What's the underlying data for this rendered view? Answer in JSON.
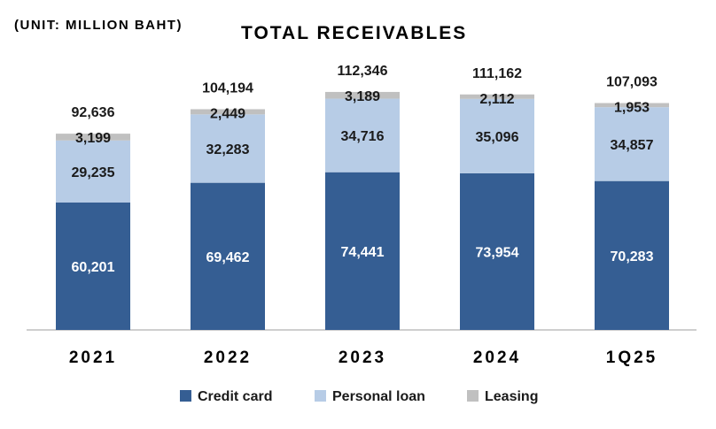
{
  "chart_data": {
    "type": "bar",
    "stacked": true,
    "title": "TOTAL RECEIVABLES",
    "subtitle": "(UNIT: MILLION BAHT)",
    "categories": [
      "2021",
      "2022",
      "2023",
      "2024",
      "1Q25"
    ],
    "series": [
      {
        "name": "Credit card",
        "values": [
          60201,
          69462,
          74441,
          73954,
          70283
        ],
        "color": "#355e93"
      },
      {
        "name": "Personal loan",
        "values": [
          29235,
          32283,
          34716,
          35096,
          34857
        ],
        "color": "#b7cce6"
      },
      {
        "name": "Leasing",
        "values": [
          3199,
          2449,
          3189,
          2112,
          1953
        ],
        "color": "#c0c0c0"
      }
    ],
    "totals": [
      92636,
      104194,
      112346,
      111162,
      107093
    ],
    "value_labels": {
      "Credit card": [
        "60,201",
        "69,462",
        "74,441",
        "73,954",
        "70,283"
      ],
      "Personal loan": [
        "29,235",
        "32,283",
        "34,716",
        "35,096",
        "34,857"
      ],
      "Leasing": [
        "3,199",
        "2,449",
        "3,189",
        "2,112",
        "1,953"
      ],
      "totals": [
        "92,636",
        "104,194",
        "112,346",
        "111,162",
        "107,093"
      ]
    },
    "legend_position": "bottom",
    "grid": false
  }
}
